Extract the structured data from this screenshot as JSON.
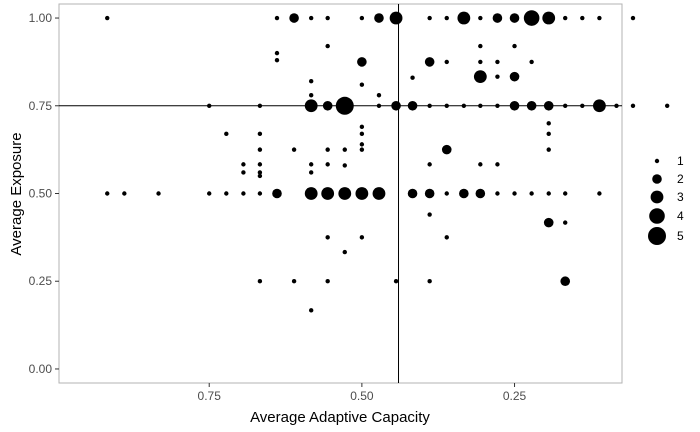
{
  "chart_data": {
    "type": "scatter",
    "xlabel": "Average Adaptive Capacity",
    "ylabel": "Average Exposure",
    "x_axis_reversed": true,
    "xlim": [
      0.996,
      0.074
    ],
    "ylim": [
      -0.04,
      1.04
    ],
    "x_ticks": [
      0.75,
      0.5,
      0.25
    ],
    "x_tick_labels": [
      "0.75",
      "0.50",
      "0.25"
    ],
    "y_ticks": [
      0,
      0.25,
      0.5,
      0.75,
      1
    ],
    "y_tick_labels": [
      "0.00",
      "0.25",
      "0.50",
      "0.75",
      "1.00"
    ],
    "reference_lines": {
      "vertical_x": 0.44,
      "horizontal_y": 0.75
    },
    "grid": false,
    "legend": {
      "placement": "right",
      "size_values": [
        1,
        2,
        3,
        4,
        5
      ],
      "labels": [
        "1",
        "2",
        "3",
        "4",
        "5"
      ]
    },
    "colors": {
      "points": "#000000",
      "panel_border": "#b3b3b3",
      "reference_line": "#000000",
      "tick_text": "#4d4d4d"
    },
    "points": [
      {
        "x": 0.917,
        "y": 1.0,
        "n": 1
      },
      {
        "x": 0.639,
        "y": 1.0,
        "n": 1
      },
      {
        "x": 0.611,
        "y": 1.0,
        "n": 2
      },
      {
        "x": 0.583,
        "y": 1.0,
        "n": 1
      },
      {
        "x": 0.556,
        "y": 1.0,
        "n": 1
      },
      {
        "x": 0.5,
        "y": 1.0,
        "n": 1
      },
      {
        "x": 0.472,
        "y": 1.0,
        "n": 2
      },
      {
        "x": 0.444,
        "y": 1.0,
        "n": 3
      },
      {
        "x": 0.389,
        "y": 1.0,
        "n": 1
      },
      {
        "x": 0.361,
        "y": 1.0,
        "n": 1
      },
      {
        "x": 0.333,
        "y": 1.0,
        "n": 3
      },
      {
        "x": 0.306,
        "y": 1.0,
        "n": 1
      },
      {
        "x": 0.278,
        "y": 1.0,
        "n": 2
      },
      {
        "x": 0.25,
        "y": 1.0,
        "n": 2
      },
      {
        "x": 0.222,
        "y": 1.0,
        "n": 4
      },
      {
        "x": 0.194,
        "y": 1.0,
        "n": 3
      },
      {
        "x": 0.167,
        "y": 1.0,
        "n": 1
      },
      {
        "x": 0.139,
        "y": 1.0,
        "n": 1
      },
      {
        "x": 0.111,
        "y": 1.0,
        "n": 1
      },
      {
        "x": 0.056,
        "y": 1.0,
        "n": 1
      },
      {
        "x": 0.639,
        "y": 0.9,
        "n": 1
      },
      {
        "x": 0.639,
        "y": 0.88,
        "n": 1
      },
      {
        "x": 0.556,
        "y": 0.92,
        "n": 1
      },
      {
        "x": 0.5,
        "y": 0.875,
        "n": 2
      },
      {
        "x": 0.306,
        "y": 0.92,
        "n": 1
      },
      {
        "x": 0.25,
        "y": 0.92,
        "n": 1
      },
      {
        "x": 0.389,
        "y": 0.875,
        "n": 2
      },
      {
        "x": 0.361,
        "y": 0.875,
        "n": 1
      },
      {
        "x": 0.306,
        "y": 0.875,
        "n": 1
      },
      {
        "x": 0.278,
        "y": 0.875,
        "n": 1
      },
      {
        "x": 0.222,
        "y": 0.875,
        "n": 1
      },
      {
        "x": 0.417,
        "y": 0.83,
        "n": 1
      },
      {
        "x": 0.306,
        "y": 0.833,
        "n": 3
      },
      {
        "x": 0.25,
        "y": 0.833,
        "n": 2
      },
      {
        "x": 0.278,
        "y": 0.833,
        "n": 1
      },
      {
        "x": 0.5,
        "y": 0.81,
        "n": 1
      },
      {
        "x": 0.583,
        "y": 0.82,
        "n": 1
      },
      {
        "x": 0.472,
        "y": 0.78,
        "n": 1
      },
      {
        "x": 0.583,
        "y": 0.78,
        "n": 1
      },
      {
        "x": 0.667,
        "y": 0.75,
        "n": 1
      },
      {
        "x": 0.583,
        "y": 0.75,
        "n": 3
      },
      {
        "x": 0.556,
        "y": 0.75,
        "n": 2
      },
      {
        "x": 0.528,
        "y": 0.75,
        "n": 5
      },
      {
        "x": 0.472,
        "y": 0.75,
        "n": 1
      },
      {
        "x": 0.444,
        "y": 0.75,
        "n": 2
      },
      {
        "x": 0.417,
        "y": 0.75,
        "n": 2
      },
      {
        "x": 0.389,
        "y": 0.75,
        "n": 1
      },
      {
        "x": 0.361,
        "y": 0.75,
        "n": 1
      },
      {
        "x": 0.333,
        "y": 0.75,
        "n": 1
      },
      {
        "x": 0.306,
        "y": 0.75,
        "n": 1
      },
      {
        "x": 0.278,
        "y": 0.75,
        "n": 1
      },
      {
        "x": 0.25,
        "y": 0.75,
        "n": 2
      },
      {
        "x": 0.222,
        "y": 0.75,
        "n": 2
      },
      {
        "x": 0.194,
        "y": 0.75,
        "n": 2
      },
      {
        "x": 0.167,
        "y": 0.75,
        "n": 1
      },
      {
        "x": 0.139,
        "y": 0.75,
        "n": 1
      },
      {
        "x": 0.111,
        "y": 0.75,
        "n": 1
      },
      {
        "x": 0.083,
        "y": 0.75,
        "n": 1
      },
      {
        "x": 0.056,
        "y": 0.75,
        "n": 1
      },
      {
        "x": 0.0,
        "y": 0.75,
        "n": 1
      },
      {
        "x": 0.75,
        "y": 0.75,
        "n": 1
      },
      {
        "x": 0.111,
        "y": 0.75,
        "n": 3
      },
      {
        "x": 0.722,
        "y": 0.67,
        "n": 1
      },
      {
        "x": 0.667,
        "y": 0.67,
        "n": 1
      },
      {
        "x": 0.5,
        "y": 0.69,
        "n": 1
      },
      {
        "x": 0.5,
        "y": 0.67,
        "n": 1
      },
      {
        "x": 0.194,
        "y": 0.7,
        "n": 1
      },
      {
        "x": 0.194,
        "y": 0.67,
        "n": 1
      },
      {
        "x": 0.667,
        "y": 0.625,
        "n": 1
      },
      {
        "x": 0.611,
        "y": 0.625,
        "n": 1
      },
      {
        "x": 0.556,
        "y": 0.625,
        "n": 1
      },
      {
        "x": 0.528,
        "y": 0.625,
        "n": 1
      },
      {
        "x": 0.5,
        "y": 0.64,
        "n": 1
      },
      {
        "x": 0.5,
        "y": 0.625,
        "n": 1
      },
      {
        "x": 0.361,
        "y": 0.625,
        "n": 2
      },
      {
        "x": 0.194,
        "y": 0.625,
        "n": 1
      },
      {
        "x": 0.667,
        "y": 0.583,
        "n": 1
      },
      {
        "x": 0.667,
        "y": 0.56,
        "n": 1
      },
      {
        "x": 0.694,
        "y": 0.583,
        "n": 1
      },
      {
        "x": 0.694,
        "y": 0.56,
        "n": 1
      },
      {
        "x": 0.583,
        "y": 0.583,
        "n": 1
      },
      {
        "x": 0.583,
        "y": 0.56,
        "n": 1
      },
      {
        "x": 0.556,
        "y": 0.583,
        "n": 1
      },
      {
        "x": 0.528,
        "y": 0.58,
        "n": 1
      },
      {
        "x": 0.389,
        "y": 0.583,
        "n": 1
      },
      {
        "x": 0.306,
        "y": 0.583,
        "n": 1
      },
      {
        "x": 0.278,
        "y": 0.583,
        "n": 1
      },
      {
        "x": 0.667,
        "y": 0.55,
        "n": 1
      },
      {
        "x": 0.917,
        "y": 0.5,
        "n": 1
      },
      {
        "x": 0.889,
        "y": 0.5,
        "n": 1
      },
      {
        "x": 0.833,
        "y": 0.5,
        "n": 1
      },
      {
        "x": 0.75,
        "y": 0.5,
        "n": 1
      },
      {
        "x": 0.722,
        "y": 0.5,
        "n": 1
      },
      {
        "x": 0.694,
        "y": 0.5,
        "n": 1
      },
      {
        "x": 0.667,
        "y": 0.5,
        "n": 1
      },
      {
        "x": 0.639,
        "y": 0.5,
        "n": 2
      },
      {
        "x": 0.583,
        "y": 0.5,
        "n": 3
      },
      {
        "x": 0.556,
        "y": 0.5,
        "n": 3
      },
      {
        "x": 0.528,
        "y": 0.5,
        "n": 3
      },
      {
        "x": 0.5,
        "y": 0.5,
        "n": 3
      },
      {
        "x": 0.472,
        "y": 0.5,
        "n": 3
      },
      {
        "x": 0.417,
        "y": 0.5,
        "n": 2
      },
      {
        "x": 0.389,
        "y": 0.5,
        "n": 2
      },
      {
        "x": 0.361,
        "y": 0.5,
        "n": 1
      },
      {
        "x": 0.333,
        "y": 0.5,
        "n": 2
      },
      {
        "x": 0.306,
        "y": 0.5,
        "n": 2
      },
      {
        "x": 0.278,
        "y": 0.5,
        "n": 1
      },
      {
        "x": 0.25,
        "y": 0.5,
        "n": 1
      },
      {
        "x": 0.222,
        "y": 0.5,
        "n": 1
      },
      {
        "x": 0.194,
        "y": 0.5,
        "n": 1
      },
      {
        "x": 0.167,
        "y": 0.5,
        "n": 1
      },
      {
        "x": 0.111,
        "y": 0.5,
        "n": 1
      },
      {
        "x": 0.194,
        "y": 0.417,
        "n": 2
      },
      {
        "x": 0.167,
        "y": 0.417,
        "n": 1
      },
      {
        "x": 0.389,
        "y": 0.44,
        "n": 1
      },
      {
        "x": 0.361,
        "y": 0.375,
        "n": 1
      },
      {
        "x": 0.556,
        "y": 0.375,
        "n": 1
      },
      {
        "x": 0.5,
        "y": 0.375,
        "n": 1
      },
      {
        "x": 0.528,
        "y": 0.333,
        "n": 1
      },
      {
        "x": 0.667,
        "y": 0.25,
        "n": 1
      },
      {
        "x": 0.611,
        "y": 0.25,
        "n": 1
      },
      {
        "x": 0.556,
        "y": 0.25,
        "n": 1
      },
      {
        "x": 0.444,
        "y": 0.25,
        "n": 1
      },
      {
        "x": 0.389,
        "y": 0.25,
        "n": 1
      },
      {
        "x": 0.167,
        "y": 0.25,
        "n": 2
      },
      {
        "x": 0.583,
        "y": 0.167,
        "n": 1
      }
    ]
  }
}
